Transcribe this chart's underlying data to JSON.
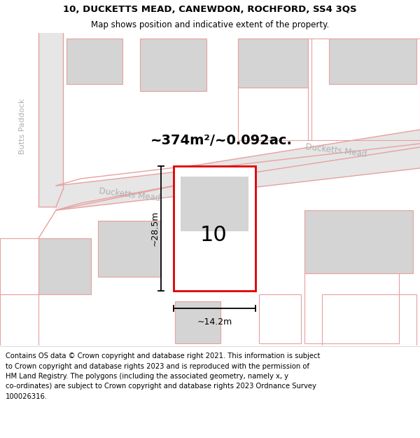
{
  "title_line1": "10, DUCKETTS MEAD, CANEWDON, ROCHFORD, SS4 3QS",
  "title_line2": "Map shows position and indicative extent of the property.",
  "area_text": "~374m²/~0.092ac.",
  "label_10": "10",
  "dim_height": "~28.5m",
  "dim_width": "~14.2m",
  "street_name1": "Ducketts Mead",
  "street_name2": "Ducketts Mead",
  "side_label": "Butts Paddock",
  "footer_lines": [
    "Contains OS data © Crown copyright and database right 2021. This information is subject",
    "to Crown copyright and database rights 2023 and is reproduced with the permission of",
    "HM Land Registry. The polygons (including the associated geometry, namely x, y",
    "co-ordinates) are subject to Crown copyright and database rights 2023 Ordnance Survey",
    "100026316."
  ],
  "bg_color": "#ffffff",
  "map_bg": "#f8f8f8",
  "road_fill": "#e6e6e6",
  "building_fill": "#d4d4d4",
  "plot_fill": "#ffffff",
  "red_color": "#dd0000",
  "pink_color": "#e8a0a0",
  "pink_light": "#f5c8c8",
  "black_color": "#000000",
  "gray_text": "#b0b0b0",
  "title_fontsize": 9.5,
  "subtitle_fontsize": 8.5,
  "footer_fontsize": 7.2,
  "area_fontsize": 14,
  "label_fontsize": 22,
  "dim_fontsize": 9,
  "road_label_fontsize": 8.5,
  "side_label_fontsize": 8
}
